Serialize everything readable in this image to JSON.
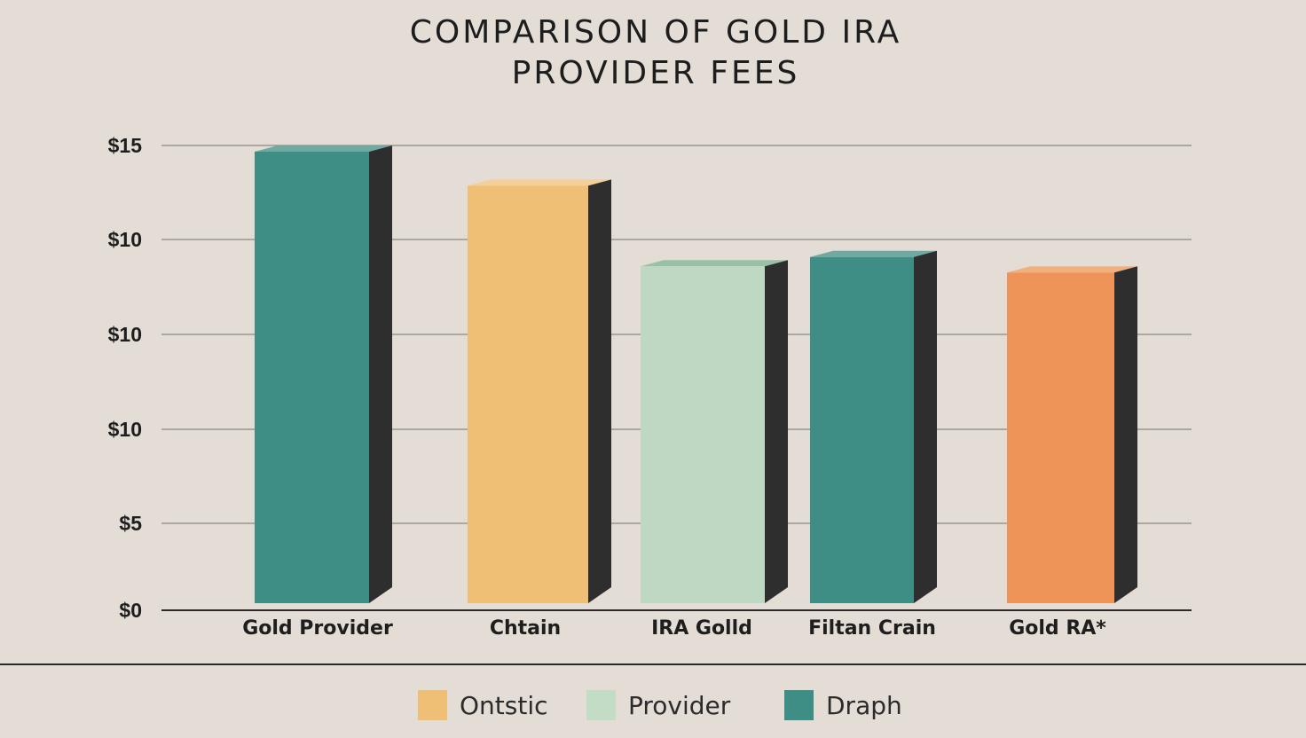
{
  "chart_data": {
    "type": "bar",
    "title_lines": [
      "COMPARISON OF GOLD IRA",
      "PROVIDER FEES"
    ],
    "xlabel": "",
    "ylabel": "",
    "y_tick_labels": [
      "$0",
      "$5",
      "$10",
      "$10",
      "$10",
      "$15"
    ],
    "categories": [
      "Gold Provider",
      "Chtain",
      "IRA Golld",
      "Filtan Crain",
      "Gold RA*"
    ],
    "values": [
      14.8,
      13.7,
      11.1,
      11.4,
      10.9
    ],
    "ylim": [
      0,
      15
    ],
    "bar_colors": [
      "#3f8e86",
      "#f0bf76",
      "#bfd8c3",
      "#3f8e86",
      "#ef9459"
    ],
    "bar_top_colors": [
      "#6faaa2",
      "#f4cf98",
      "#98c1a9",
      "#6faaa2",
      "#f3b07f"
    ],
    "side_color": "#2e2e2e",
    "grid": true,
    "legend_position": "bottom",
    "legend": [
      {
        "label": "Ontstic",
        "color": "#f0bf76"
      },
      {
        "label": "Provider",
        "color": "#c2dcc6"
      },
      {
        "label": "Draph",
        "color": "#3f8e86"
      }
    ]
  }
}
